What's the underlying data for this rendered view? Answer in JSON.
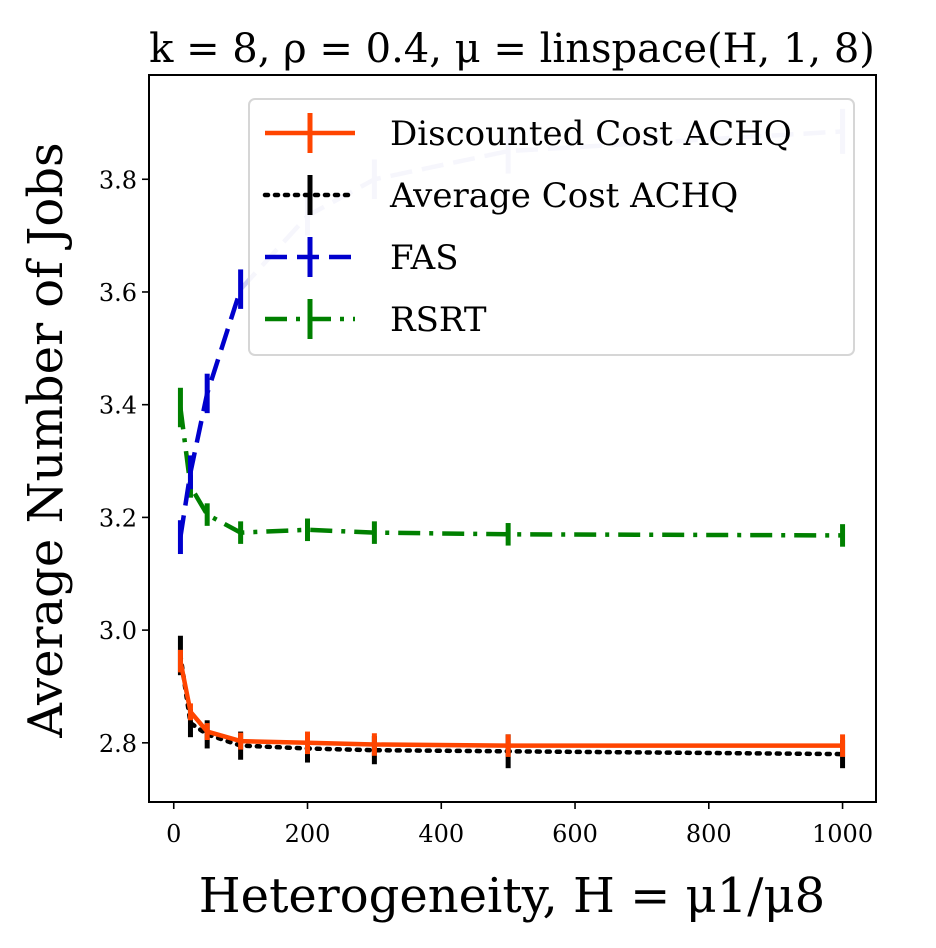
{
  "chart_data": {
    "type": "line",
    "title": "k = 8, ρ = 0.4, μ = linspace(H, 1, 8)",
    "xlabel": "Heterogeneity, H = μ1/μ8",
    "ylabel": "Average Number of Jobs",
    "xlim": [
      -37,
      1050
    ],
    "ylim": [
      2.695,
      3.985
    ],
    "x_ticks": [
      0,
      200,
      400,
      600,
      800,
      1000
    ],
    "y_ticks": [
      2.8,
      3.0,
      3.2,
      3.4,
      3.6,
      3.8
    ],
    "x_tick_labels": [
      "0",
      "200",
      "400",
      "600",
      "800",
      "1000"
    ],
    "y_tick_labels": [
      "2.8",
      "3.0",
      "3.2",
      "3.4",
      "3.6",
      "3.8"
    ],
    "grid": false,
    "legend_position": "top-right",
    "x": [
      10,
      25,
      50,
      100,
      200,
      300,
      500,
      1000
    ],
    "series": [
      {
        "name": "Discounted Cost ACHQ",
        "color": "#ff4500",
        "dash": "solid",
        "values": [
          2.945,
          2.855,
          2.82,
          2.803,
          2.8,
          2.797,
          2.795,
          2.795
        ],
        "errors": [
          0.02,
          0.015,
          0.015,
          0.015,
          0.02,
          0.02,
          0.02,
          0.02
        ]
      },
      {
        "name": "Average Cost ACHQ",
        "color": "#000000",
        "dash": "dotted",
        "values": [
          2.955,
          2.835,
          2.815,
          2.795,
          2.79,
          2.787,
          2.785,
          2.78
        ],
        "errors": [
          0.035,
          0.025,
          0.025,
          0.025,
          0.025,
          0.025,
          0.03,
          0.025
        ]
      },
      {
        "name": "FAS",
        "color": "#0000cd",
        "faded_color": "#d0d0f0",
        "dash": "dashed",
        "values": [
          3.165,
          3.28,
          3.42,
          3.605,
          3.735,
          3.8,
          3.85,
          3.885
        ],
        "errors": [
          0.03,
          0.03,
          0.035,
          0.035,
          0.035,
          0.035,
          0.04,
          0.04
        ]
      },
      {
        "name": "RSRT",
        "color": "#008000",
        "dash": "dashdot",
        "values": [
          3.395,
          3.255,
          3.205,
          3.173,
          3.178,
          3.173,
          3.17,
          3.168
        ],
        "errors": [
          0.035,
          0.02,
          0.02,
          0.02,
          0.02,
          0.02,
          0.02,
          0.02
        ]
      }
    ]
  }
}
